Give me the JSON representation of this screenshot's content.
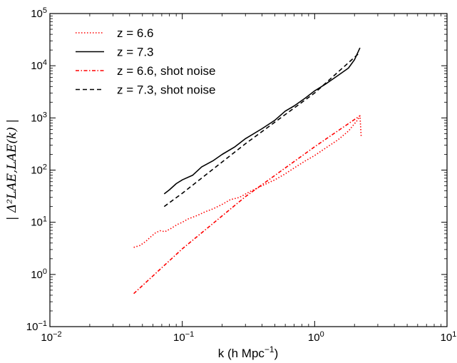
{
  "chart_data": {
    "type": "line",
    "xscale": "log",
    "yscale": "log",
    "xlim": [
      0.01,
      10
    ],
    "ylim": [
      0.1,
      100000
    ],
    "x_ticks": [
      {
        "base": "10",
        "exp": "−2"
      },
      {
        "base": "10",
        "exp": "−1"
      },
      {
        "base": "10",
        "exp": "0"
      },
      {
        "base": "10",
        "exp": "1"
      }
    ],
    "y_ticks": [
      {
        "base": "10",
        "exp": "−1"
      },
      {
        "base": "10",
        "exp": "0"
      },
      {
        "base": "10",
        "exp": "1"
      },
      {
        "base": "10",
        "exp": "2"
      },
      {
        "base": "10",
        "exp": "3"
      },
      {
        "base": "10",
        "exp": "4"
      },
      {
        "base": "10",
        "exp": "5"
      }
    ],
    "xlabel_main": "k (h Mpc",
    "xlabel_sup": "−1",
    "xlabel_close": ")",
    "ylabel": "| Δ²LAE,LAE(k) |",
    "legend_position": "top-left",
    "grid": false,
    "series": [
      {
        "name": "z = 6.6",
        "color": "#ff0000",
        "style": "dotted",
        "points": [
          [
            0.043,
            3.3
          ],
          [
            0.048,
            3.6
          ],
          [
            0.053,
            4.3
          ],
          [
            0.058,
            5.3
          ],
          [
            0.063,
            6.3
          ],
          [
            0.068,
            6.9
          ],
          [
            0.074,
            6.6
          ],
          [
            0.082,
            7.6
          ],
          [
            0.092,
            9.1
          ],
          [
            0.1,
            10.0
          ],
          [
            0.11,
            11.5
          ],
          [
            0.13,
            13.5
          ],
          [
            0.15,
            16.0
          ],
          [
            0.17,
            18.0
          ],
          [
            0.2,
            22.0
          ],
          [
            0.23,
            27.0
          ],
          [
            0.27,
            30.0
          ],
          [
            0.32,
            38.0
          ],
          [
            0.4,
            50.0
          ],
          [
            0.5,
            65.0
          ],
          [
            0.6,
            85.0
          ],
          [
            0.7,
            110.0
          ],
          [
            0.85,
            150.0
          ],
          [
            1.0,
            190.0
          ],
          [
            1.2,
            260.0
          ],
          [
            1.5,
            380.0
          ],
          [
            1.8,
            560.0
          ],
          [
            2.1,
            900.0
          ],
          [
            2.2,
            1100.0
          ],
          [
            2.25,
            420.0
          ]
        ]
      },
      {
        "name": "z = 7.3",
        "color": "#000000",
        "style": "solid",
        "points": [
          [
            0.073,
            35.0
          ],
          [
            0.08,
            42.0
          ],
          [
            0.09,
            55.0
          ],
          [
            0.1,
            65.0
          ],
          [
            0.12,
            80.0
          ],
          [
            0.14,
            115.0
          ],
          [
            0.17,
            150.0
          ],
          [
            0.2,
            200.0
          ],
          [
            0.25,
            280.0
          ],
          [
            0.3,
            400.0
          ],
          [
            0.4,
            620.0
          ],
          [
            0.5,
            900.0
          ],
          [
            0.6,
            1350.0
          ],
          [
            0.7,
            1700.0
          ],
          [
            0.85,
            2400.0
          ],
          [
            1.0,
            3300.0
          ],
          [
            1.2,
            4400.0
          ],
          [
            1.5,
            6500.0
          ],
          [
            1.8,
            9000.0
          ],
          [
            2.0,
            13000.0
          ],
          [
            2.2,
            22000.0
          ]
        ]
      },
      {
        "name": "z = 6.6, shot noise",
        "color": "#ff0000",
        "style": "dashdot",
        "points": [
          [
            0.043,
            0.43
          ],
          [
            0.1,
            3.1
          ],
          [
            0.3,
            31.0
          ],
          [
            1.0,
            280.0
          ],
          [
            2.2,
            1100.0
          ]
        ]
      },
      {
        "name": "z = 7.3, shot noise",
        "color": "#000000",
        "style": "dashed",
        "points": [
          [
            0.073,
            20.0
          ],
          [
            0.1,
            36.0
          ],
          [
            0.3,
            320.0
          ],
          [
            1.0,
            3000.0
          ],
          [
            2.2,
            18000.0
          ]
        ]
      }
    ]
  }
}
